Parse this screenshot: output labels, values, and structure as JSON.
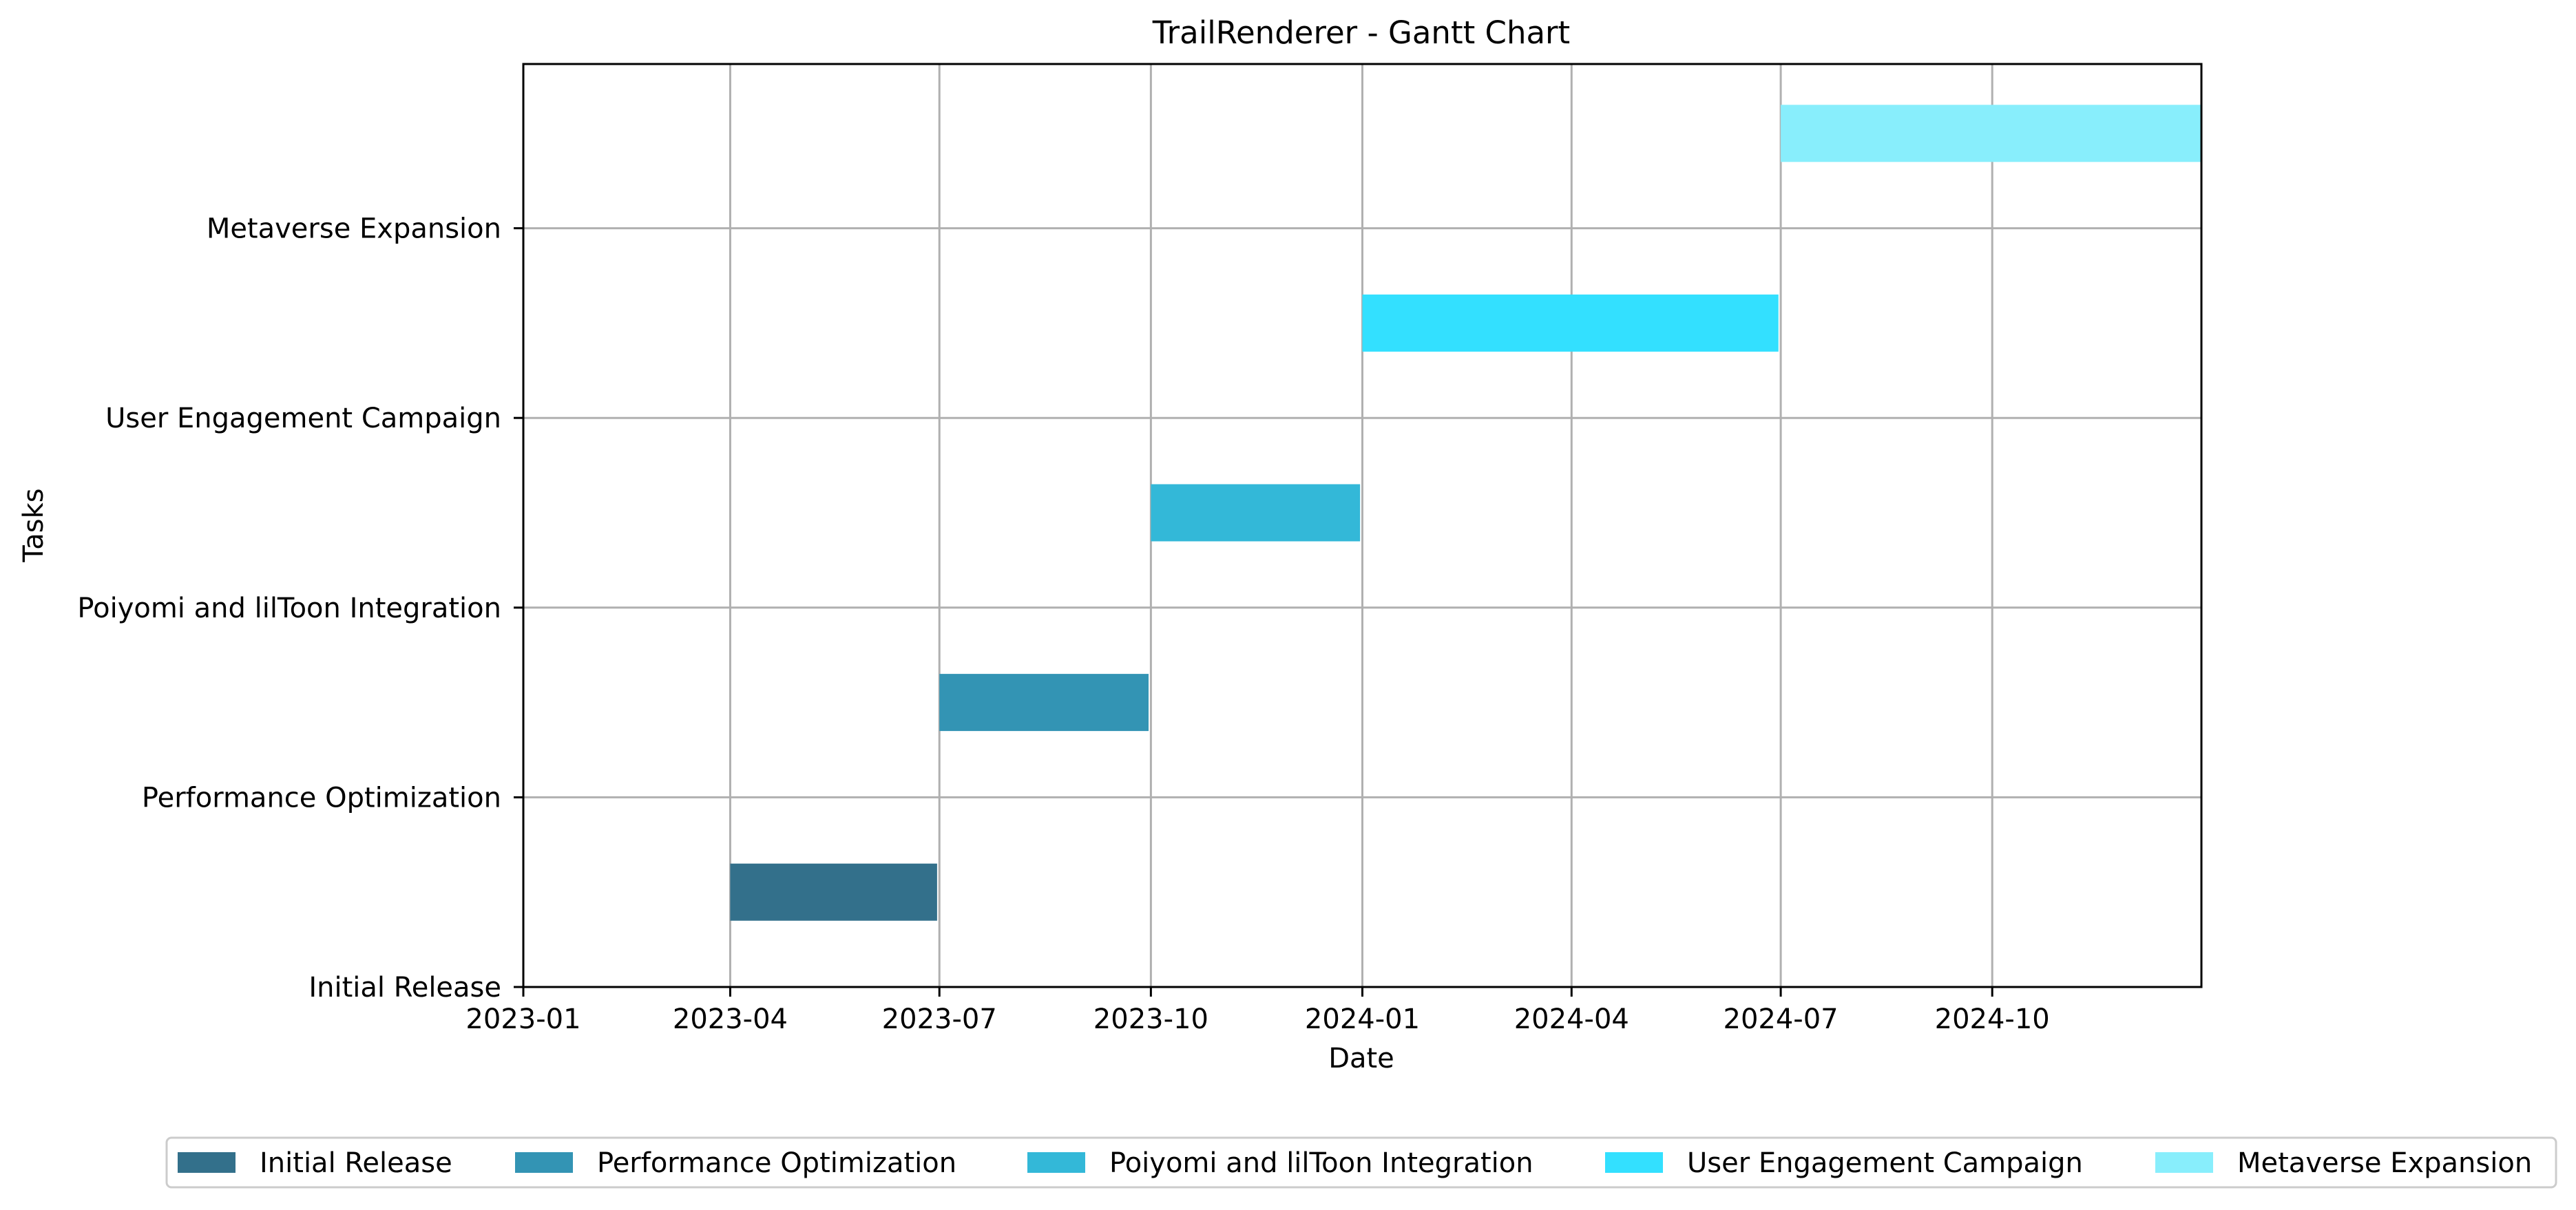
{
  "chart_data": {
    "type": "gantt",
    "title": "TrailRenderer - Gantt Chart",
    "xlabel": "Date",
    "ylabel": "Tasks",
    "xlim": [
      "2023-01-01",
      "2024-12-31"
    ],
    "x_ticks": [
      "2023-01",
      "2023-04",
      "2023-07",
      "2023-10",
      "2024-01",
      "2024-04",
      "2024-07",
      "2024-10"
    ],
    "y_ticks": [
      "Initial Release",
      "Performance Optimization",
      "Poiyomi and lilToon Integration",
      "User Engagement Campaign",
      "Metaverse Expansion"
    ],
    "grid": true,
    "legend_position": "bottom-center",
    "tasks": [
      {
        "name": "Initial Release",
        "start": "2023-04-01",
        "end": "2023-06-30",
        "color": "#33708b"
      },
      {
        "name": "Performance Optimization",
        "start": "2023-07-01",
        "end": "2023-09-30",
        "color": "#3394b4"
      },
      {
        "name": "Poiyomi and lilToon Integration",
        "start": "2023-10-01",
        "end": "2023-12-31",
        "color": "#33b8d8"
      },
      {
        "name": "User Engagement Campaign",
        "start": "2024-01-01",
        "end": "2024-06-30",
        "color": "#33e0ff"
      },
      {
        "name": "Metaverse Expansion",
        "start": "2024-07-01",
        "end": "2024-12-31",
        "color": "#88eefc"
      }
    ]
  }
}
